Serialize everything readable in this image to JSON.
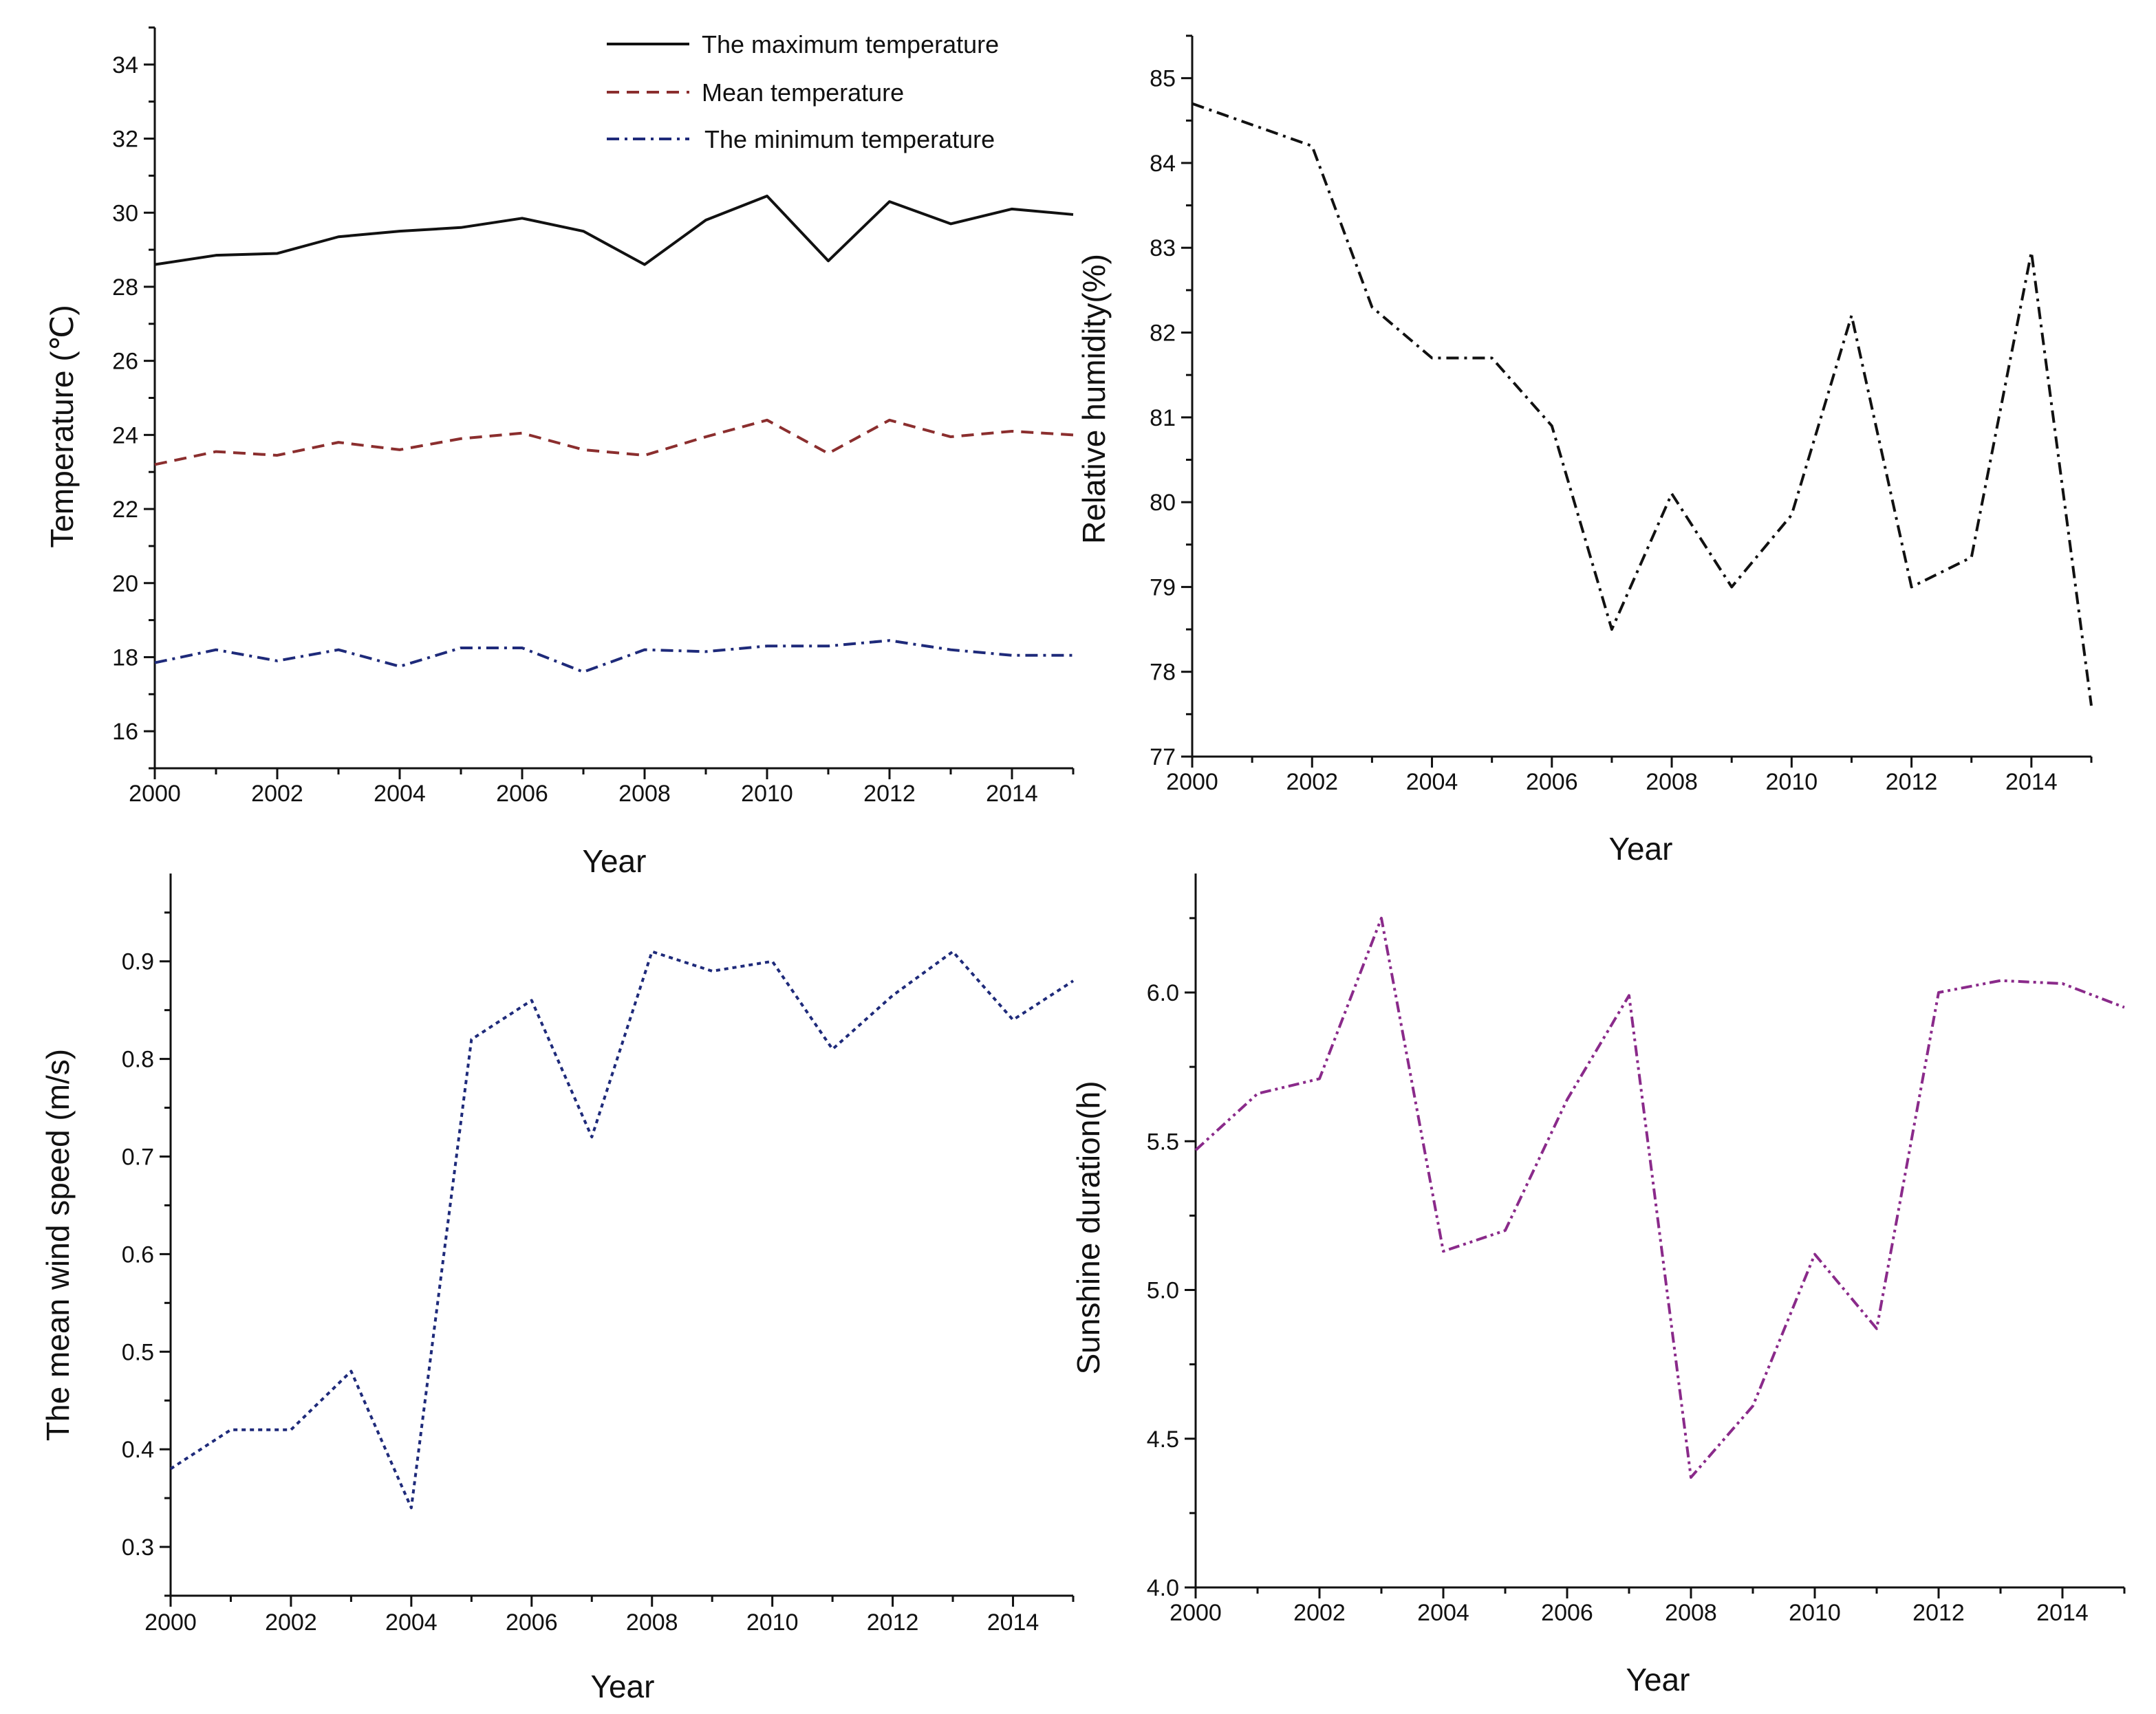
{
  "figure": {
    "background": "#ffffff",
    "axis_color": "#111111"
  },
  "chart_data": [
    {
      "id": "temperature",
      "type": "line",
      "xlabel": "Year",
      "ylabel": "Temperature (℃)",
      "xlim": [
        2000,
        2015
      ],
      "ylim": [
        15,
        35
      ],
      "xticks": [
        2000,
        2002,
        2004,
        2006,
        2008,
        2010,
        2012,
        2014
      ],
      "yticks": [
        16,
        18,
        20,
        22,
        24,
        26,
        28,
        30,
        32,
        34
      ],
      "x": [
        2000,
        2001,
        2002,
        2003,
        2004,
        2005,
        2006,
        2007,
        2008,
        2009,
        2010,
        2011,
        2012,
        2013,
        2014,
        2015
      ],
      "legend": "top-right",
      "series": [
        {
          "name": "The maximum temperature",
          "color": "#111111",
          "dash": "solid",
          "values": [
            28.6,
            28.85,
            28.9,
            29.35,
            29.5,
            29.6,
            29.85,
            29.5,
            28.6,
            29.8,
            30.45,
            28.7,
            30.3,
            29.7,
            30.1,
            29.95
          ]
        },
        {
          "name": "Mean temperature",
          "color": "#8b2e2e",
          "dash": "dash",
          "values": [
            23.2,
            23.55,
            23.45,
            23.8,
            23.6,
            23.9,
            24.05,
            23.6,
            23.45,
            23.95,
            24.4,
            23.5,
            24.4,
            23.95,
            24.1,
            24.0
          ]
        },
        {
          "name": "The minimum temperature",
          "color": "#1e2a7a",
          "dash": "dashdot",
          "values": [
            17.85,
            18.2,
            17.9,
            18.2,
            17.75,
            18.25,
            18.25,
            17.6,
            18.2,
            18.15,
            18.3,
            18.3,
            18.45,
            18.2,
            18.05,
            18.05
          ]
        }
      ]
    },
    {
      "id": "humidity",
      "type": "line",
      "xlabel": "Year",
      "ylabel": "Relative humidity(%)",
      "xlim": [
        2000,
        2015
      ],
      "ylim": [
        77,
        85.5
      ],
      "xticks": [
        2000,
        2002,
        2004,
        2006,
        2008,
        2010,
        2012,
        2014
      ],
      "yticks": [
        77,
        78,
        79,
        80,
        81,
        82,
        83,
        84,
        85
      ],
      "x": [
        2000,
        2001,
        2002,
        2003,
        2004,
        2005,
        2006,
        2007,
        2008,
        2009,
        2010,
        2011,
        2012,
        2013,
        2014,
        2015
      ],
      "series": [
        {
          "name": "Relative humidity",
          "color": "#111111",
          "dash": "dashdot",
          "values": [
            84.7,
            84.45,
            84.2,
            82.3,
            81.7,
            81.7,
            80.9,
            78.5,
            80.1,
            79.0,
            79.85,
            82.2,
            79.0,
            79.35,
            82.95,
            77.6
          ]
        }
      ]
    },
    {
      "id": "wind",
      "type": "line",
      "xlabel": "Year",
      "ylabel": "The mean wind speed (m/s)",
      "xlim": [
        2000,
        2015
      ],
      "ylim": [
        0.25,
        0.99
      ],
      "xticks": [
        2000,
        2002,
        2004,
        2006,
        2008,
        2010,
        2012,
        2014
      ],
      "yticks": [
        0.3,
        0.4,
        0.5,
        0.6,
        0.7,
        0.8,
        0.9
      ],
      "x": [
        2000,
        2001,
        2002,
        2003,
        2004,
        2005,
        2006,
        2007,
        2008,
        2009,
        2010,
        2011,
        2012,
        2013,
        2014,
        2015
      ],
      "series": [
        {
          "name": "Mean wind speed",
          "color": "#1e2a7a",
          "dash": "dot",
          "values": [
            0.38,
            0.42,
            0.42,
            0.48,
            0.34,
            0.82,
            0.86,
            0.72,
            0.91,
            0.89,
            0.9,
            0.81,
            0.865,
            0.91,
            0.84,
            0.88
          ]
        }
      ]
    },
    {
      "id": "sunshine",
      "type": "line",
      "xlabel": "Year",
      "ylabel": "Sunshine duration(h)",
      "xlim": [
        2000,
        2015
      ],
      "ylim": [
        4.0,
        6.4
      ],
      "xticks": [
        2000,
        2002,
        2004,
        2006,
        2008,
        2010,
        2012,
        2014
      ],
      "yticks": [
        "4.0",
        "4.5",
        "5.0",
        "5.5",
        "6.0"
      ],
      "x": [
        2000,
        2001,
        2002,
        2003,
        2004,
        2005,
        2006,
        2007,
        2008,
        2009,
        2010,
        2011,
        2012,
        2013,
        2014,
        2015
      ],
      "series": [
        {
          "name": "Sunshine duration",
          "color": "#8a2a8a",
          "dash": "dashdotdot",
          "values": [
            5.47,
            5.66,
            5.71,
            6.25,
            5.13,
            5.2,
            5.64,
            5.99,
            4.37,
            4.61,
            5.12,
            4.87,
            6.0,
            6.04,
            6.03,
            5.95
          ]
        }
      ]
    }
  ]
}
